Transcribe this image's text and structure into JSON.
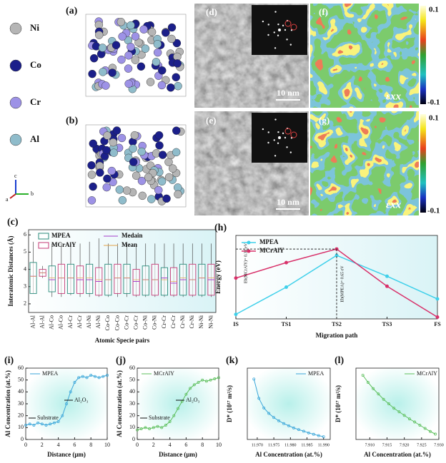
{
  "atoms": {
    "names": [
      "Ni",
      "Co",
      "Cr",
      "Al"
    ],
    "colors": [
      "#b5b5b5",
      "#1b1f8a",
      "#9d92e6",
      "#8fbccb"
    ],
    "triad": [
      "c",
      "a",
      "b"
    ]
  },
  "panels": {
    "a": "(a)",
    "b": "(b)",
    "d": "(d)",
    "e": "(e)",
    "f": "(f)",
    "g": "(g)"
  },
  "scale_bar": "10 nm",
  "strain_label": "εxx",
  "colorbar_ticks": [
    "0.1",
    "-0.1"
  ],
  "chart_data": [
    {
      "type": "box",
      "panel": "(c)",
      "ylabel": "Interatomic Distances (Å)",
      "xlabel": "Atomic Specie pairs",
      "categories": [
        "Al-Al",
        "Al-Co",
        "Al-Cr",
        "Al-Ni",
        "Co-Co",
        "Co-Cr",
        "Co-Ni",
        "Cr-Cr",
        "Cr-Ni",
        "Ni-Ni"
      ],
      "ylim": [
        1.5,
        6.3
      ],
      "yticks": [
        2,
        3,
        4,
        5,
        6
      ],
      "median_name": "Medain",
      "median_color": "#a43cc9",
      "mean_name": "Mean",
      "mean_color": "#e2a24a",
      "series": [
        {
          "name": "MPEA",
          "color": "#2a8a7a",
          "min": [
            2.6,
            2.4,
            2.5,
            2.4,
            2.4,
            2.4,
            2.4,
            2.4,
            2.4,
            2.4
          ],
          "q1": [
            2.6,
            2.7,
            2.6,
            2.6,
            2.5,
            2.6,
            2.5,
            2.5,
            2.5,
            2.5
          ],
          "median": [
            3.6,
            3.4,
            3.5,
            3.4,
            3.4,
            3.5,
            3.4,
            3.5,
            3.4,
            3.5
          ],
          "q3": [
            4.4,
            4.2,
            4.3,
            4.3,
            4.3,
            4.3,
            4.2,
            4.1,
            4.3,
            4.3
          ],
          "max": [
            5.6,
            5.5,
            5.5,
            5.6,
            5.5,
            5.5,
            5.5,
            5.5,
            5.5,
            5.5
          ],
          "mean": [
            3.6,
            3.5,
            3.5,
            3.5,
            3.4,
            3.5,
            3.4,
            3.4,
            3.5,
            3.5
          ]
        },
        {
          "name": "MCrAlY",
          "color": "#c43a76",
          "min": [
            3.5,
            2.4,
            2.4,
            2.4,
            2.4,
            2.4,
            2.4,
            2.4,
            2.4,
            2.4
          ],
          "q1": [
            3.6,
            2.6,
            2.6,
            2.5,
            2.6,
            2.5,
            2.5,
            2.5,
            2.5,
            2.5
          ],
          "median": [
            3.8,
            3.5,
            3.4,
            3.3,
            3.5,
            3.3,
            3.4,
            3.2,
            3.4,
            3.4
          ],
          "q3": [
            4.0,
            4.3,
            4.2,
            4.1,
            4.3,
            4.0,
            4.3,
            4.1,
            4.3,
            4.3
          ],
          "max": [
            4.2,
            5.5,
            5.5,
            5.8,
            5.5,
            5.5,
            5.5,
            5.5,
            5.5,
            5.5
          ],
          "mean": [
            3.8,
            3.5,
            3.5,
            3.4,
            3.5,
            3.4,
            3.4,
            3.3,
            3.4,
            3.5
          ]
        }
      ]
    },
    {
      "type": "line",
      "panel": "(h)",
      "ylabel": "Energy (eV)",
      "xlabel": "Migration path",
      "categories": [
        "IS",
        "TS1",
        "TS2",
        "TS3",
        "FS"
      ],
      "ylim": [
        -0.02,
        0.9
      ],
      "annotations": [
        "Eb(MCrAlY)= 0.31 eV",
        "Eb(MPEA)= 0.65 eV"
      ],
      "series": [
        {
          "name": "MPEA",
          "color": "#3fd0ea",
          "values": [
            0.03,
            0.33,
            0.68,
            0.45,
            0.2
          ]
        },
        {
          "name": "MCrAlY",
          "color": "#d8316a",
          "values": [
            0.43,
            0.6,
            0.75,
            0.34,
            0.0
          ]
        }
      ]
    },
    {
      "type": "scatter",
      "panel": "(i)",
      "xlabel": "Distance (μm)",
      "ylabel": "Al Concentration (at.%)",
      "xlim": [
        0,
        10
      ],
      "xticks": [
        0,
        2,
        4,
        6,
        8,
        10
      ],
      "ylim": [
        0,
        60
      ],
      "yticks": [
        0,
        10,
        20,
        30,
        40,
        50,
        60
      ],
      "annotations": [
        "Substrate",
        "Al₂O₃"
      ],
      "x": [
        0,
        0.5,
        1,
        1.5,
        2,
        2.5,
        3,
        3.5,
        4,
        4.5,
        5,
        5.5,
        6,
        6.5,
        7,
        7.5,
        8,
        8.5,
        9,
        9.5,
        10
      ],
      "series": [
        {
          "name": "MPEA",
          "color": "#3aa6d9",
          "values": [
            12,
            13,
            12,
            14,
            13,
            12,
            13,
            14,
            15,
            20,
            30,
            40,
            48,
            52,
            53,
            52,
            54,
            53,
            52,
            53,
            54
          ]
        }
      ]
    },
    {
      "type": "scatter",
      "panel": "(j)",
      "xlabel": "Distance (μm)",
      "ylabel": "Al Concentration (at.%)",
      "xlim": [
        0,
        10
      ],
      "xticks": [
        0,
        2,
        4,
        6,
        8,
        10
      ],
      "ylim": [
        0,
        60
      ],
      "yticks": [
        0,
        10,
        20,
        30,
        40,
        50,
        60
      ],
      "annotations": [
        "Substrate",
        "Al₂O₃"
      ],
      "x": [
        0,
        0.5,
        1,
        1.5,
        2,
        2.5,
        3,
        3.5,
        4,
        4.5,
        5,
        5.5,
        6,
        6.5,
        7,
        7.5,
        8,
        8.5,
        9,
        9.5,
        10
      ],
      "series": [
        {
          "name": "MCrAlY",
          "color": "#5cbf5c",
          "values": [
            8,
            9,
            10,
            9,
            10,
            11,
            10,
            12,
            15,
            20,
            26,
            32,
            38,
            43,
            46,
            48,
            50,
            49,
            50,
            51,
            52
          ]
        }
      ]
    },
    {
      "type": "scatter",
      "panel": "(k)",
      "xlabel": "Al Concentration (at.%)",
      "ylabel": "D* (10¹⁷ m²/s)",
      "xlim": [
        11.967,
        11.992
      ],
      "ylim": [
        0,
        2.6
      ],
      "xticks": [
        {
          "value": 11.97,
          "label": "11.970"
        },
        11.975,
        {
          "value": 11.98,
          "label": "11.980"
        },
        11.985,
        {
          "value": 11.99,
          "label": "11.990"
        }
      ],
      "x": [
        11.969,
        11.9705,
        11.972,
        11.9735,
        11.975,
        11.9765,
        11.978,
        11.9795,
        11.981,
        11.9825,
        11.984,
        11.9855,
        11.987,
        11.9885,
        11.99
      ],
      "series": [
        {
          "name": "MPEA",
          "color": "#3aa6d9",
          "values": [
            2.2,
            1.5,
            1.15,
            0.95,
            0.8,
            0.68,
            0.58,
            0.5,
            0.42,
            0.36,
            0.3,
            0.24,
            0.19,
            0.14,
            0.1
          ]
        }
      ]
    },
    {
      "type": "scatter",
      "panel": "(l)",
      "xlabel": "Al Concentration (at.%)",
      "ylabel": "D* (10¹⁷ m²/s)",
      "xlim": [
        7.906,
        7.93
      ],
      "ylim": [
        0,
        4
      ],
      "xticks": [
        {
          "value": 7.91,
          "label": "7.910"
        },
        7.915,
        {
          "value": 7.92,
          "label": "7.920"
        },
        7.925,
        {
          "value": 7.93,
          "label": "7.930"
        }
      ],
      "x": [
        7.908,
        7.9095,
        7.911,
        7.9125,
        7.914,
        7.9155,
        7.917,
        7.9185,
        7.92,
        7.9215,
        7.923,
        7.9245,
        7.926,
        7.9275,
        7.929
      ],
      "series": [
        {
          "name": "MCrAlY",
          "color": "#5cbf5c",
          "values": [
            3.6,
            3.2,
            2.85,
            2.55,
            2.25,
            2.0,
            1.75,
            1.55,
            1.35,
            1.15,
            0.98,
            0.8,
            0.62,
            0.45,
            0.3
          ]
        }
      ]
    }
  ]
}
